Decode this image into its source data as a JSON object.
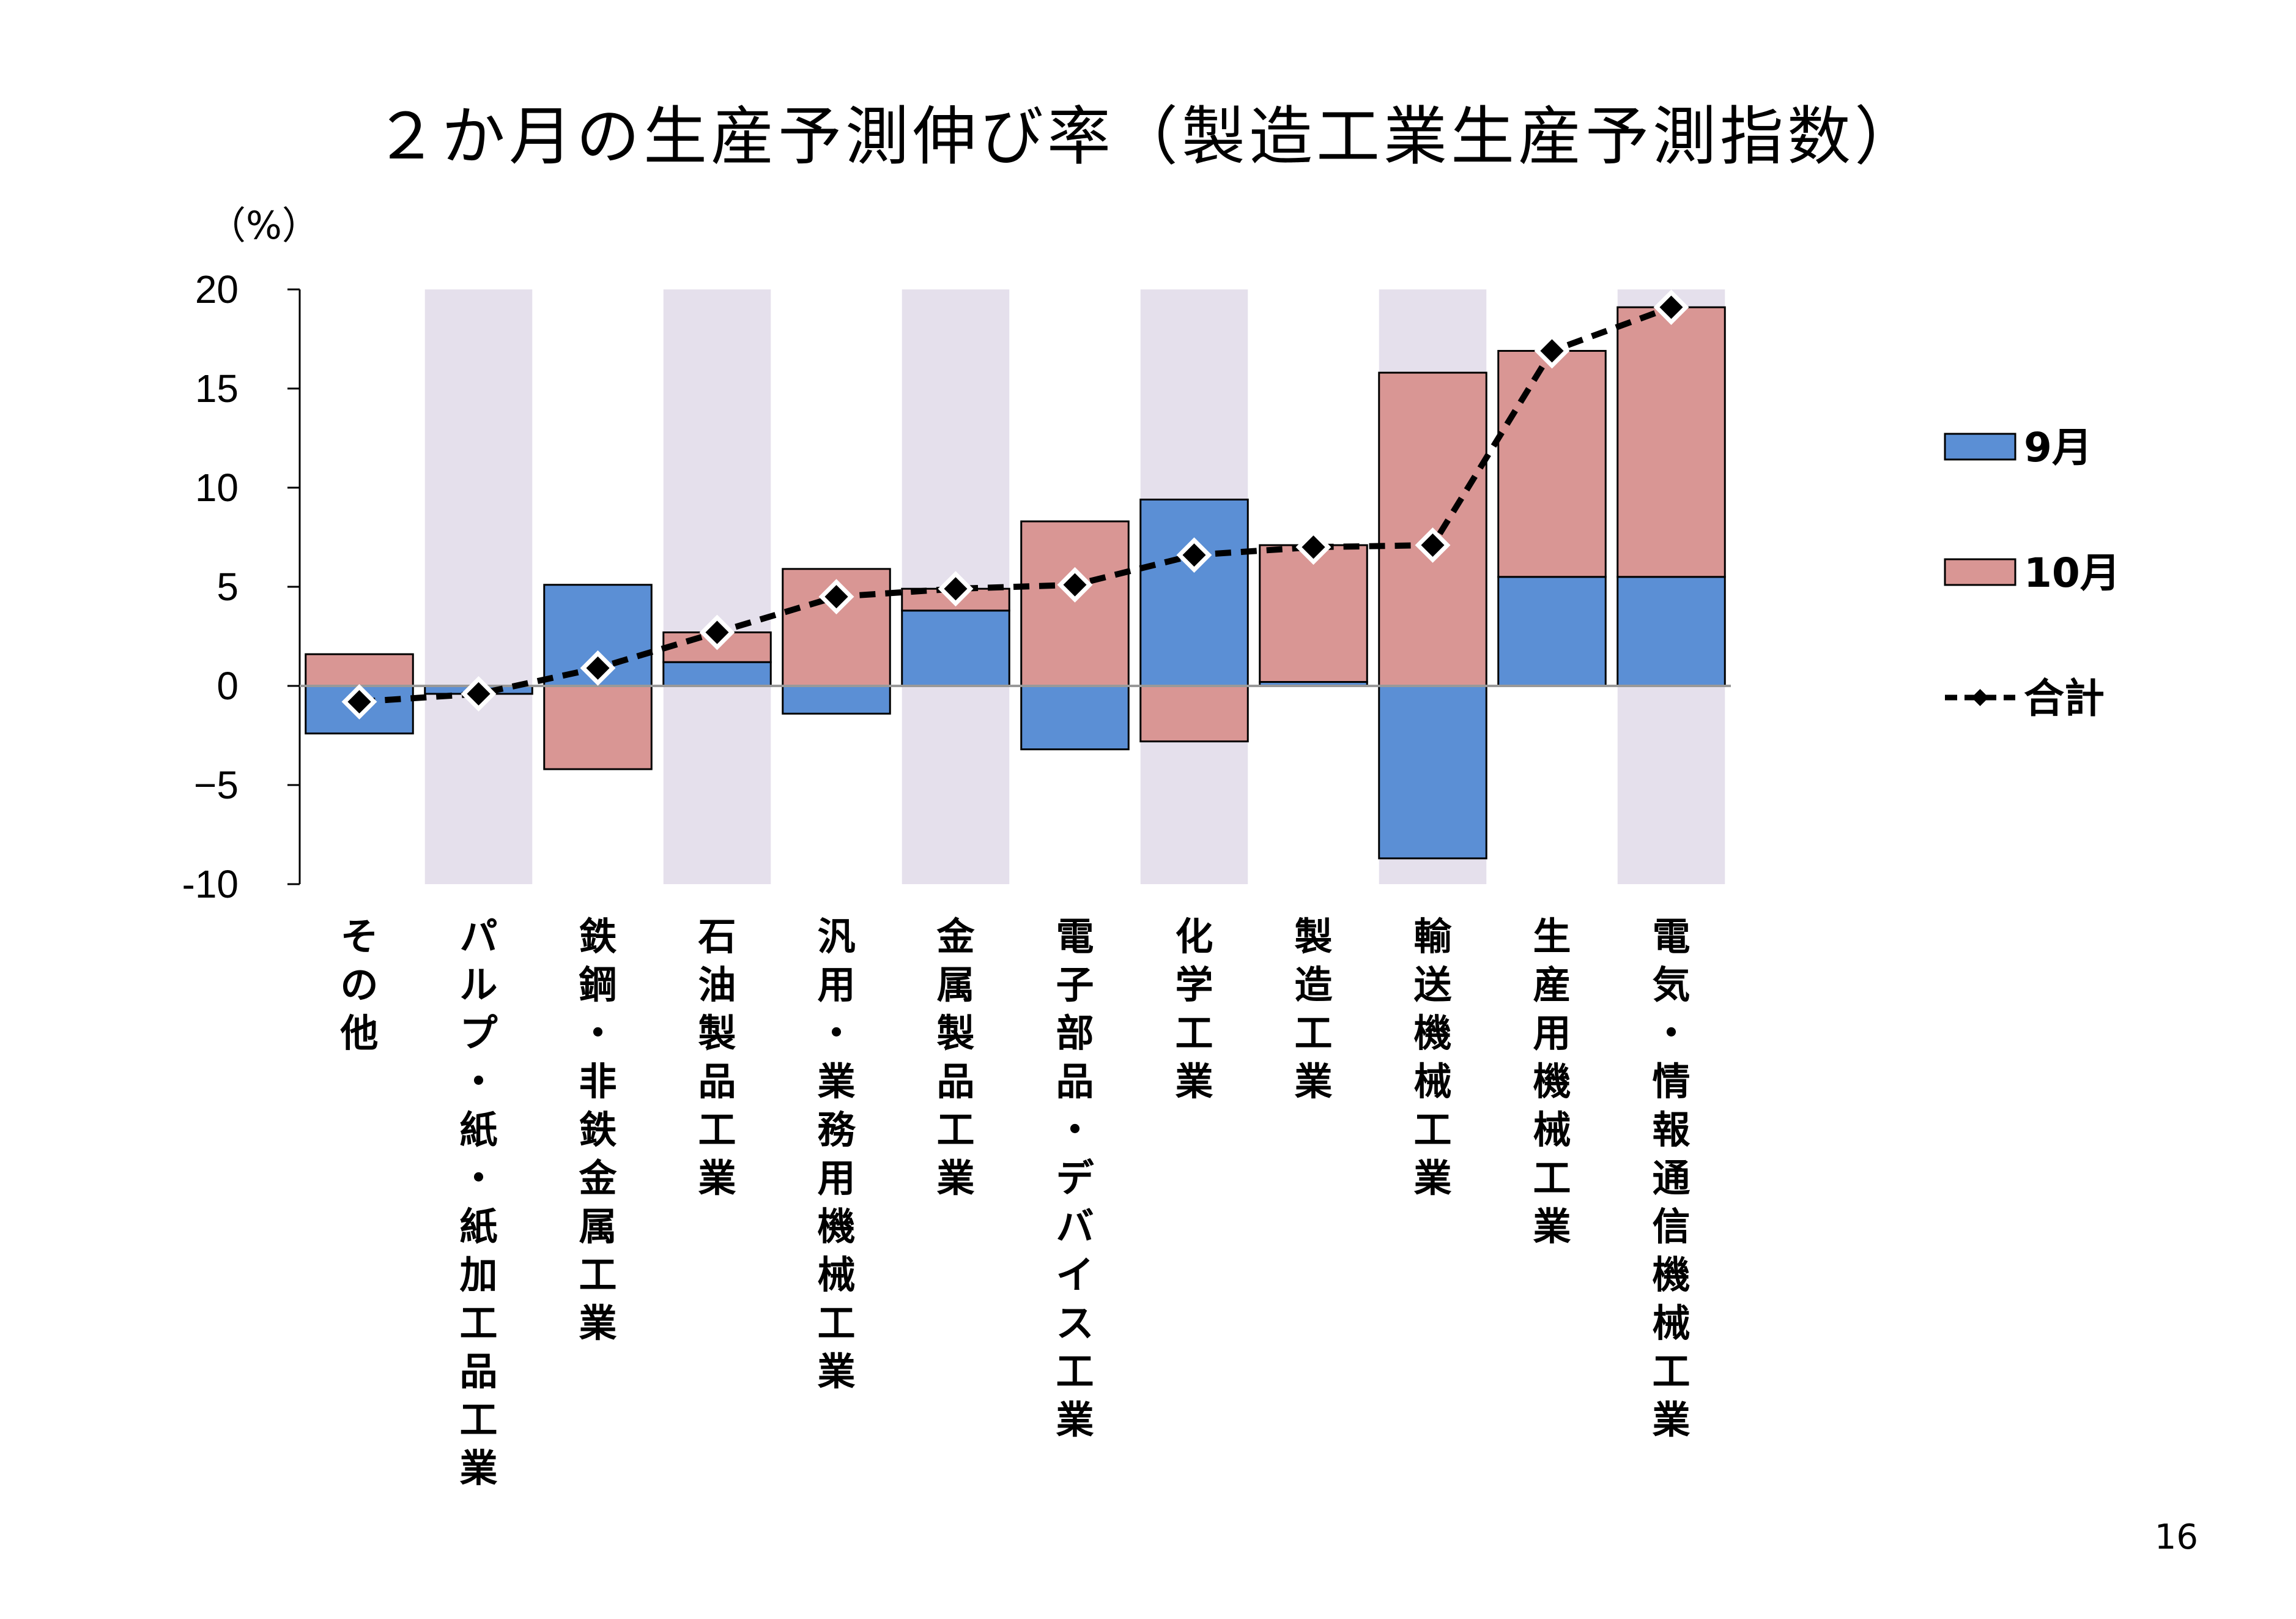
{
  "title": "２か月の生産予測伸び率（製造工業生産予測指数）",
  "page_number": "16",
  "colors": {
    "sep": "#5b8fd5",
    "oct": "#d99694",
    "band": "#e5e0ec",
    "line": "#000000"
  },
  "chart_data": {
    "type": "bar",
    "stacked": true,
    "unit_label": "（%）",
    "ylim": [
      -10,
      20
    ],
    "yticks": [
      20,
      15,
      10,
      5,
      0,
      -5,
      -10
    ],
    "ytick_labels": [
      "20",
      "15",
      "10",
      "5",
      "0",
      "−5",
      "-10"
    ],
    "categories": [
      "その他",
      "パルプ・紙・紙加工品工業",
      "鉄鋼・非鉄金属工業",
      "石油製品工業",
      "汎用・業務用機械工業",
      "金属製品工業",
      "電子部品・デバイス工業",
      "化学工業",
      "製造工業",
      "輸送機械工業",
      "生産用機械工業",
      "電気・情報通信機械工業"
    ],
    "shaded_categories": [
      1,
      3,
      5,
      7,
      9,
      11
    ],
    "series": [
      {
        "name": "9月",
        "kind": "bar",
        "color_key": "sep",
        "values": [
          -2.4,
          -0.4,
          5.1,
          1.2,
          -1.4,
          3.8,
          -3.2,
          9.4,
          0.2,
          -8.7,
          5.5,
          5.5
        ]
      },
      {
        "name": "10月",
        "kind": "bar",
        "color_key": "oct",
        "values": [
          1.6,
          0.0,
          -4.2,
          1.5,
          5.9,
          1.1,
          8.3,
          -2.8,
          6.9,
          15.8,
          11.4,
          13.6
        ]
      },
      {
        "name": "合計",
        "kind": "line",
        "color_key": "line",
        "values": [
          -0.8,
          -0.4,
          0.9,
          2.7,
          4.5,
          4.9,
          5.1,
          6.6,
          7.0,
          7.1,
          16.9,
          19.1
        ]
      }
    ],
    "legend_position": "right",
    "grid": false
  }
}
